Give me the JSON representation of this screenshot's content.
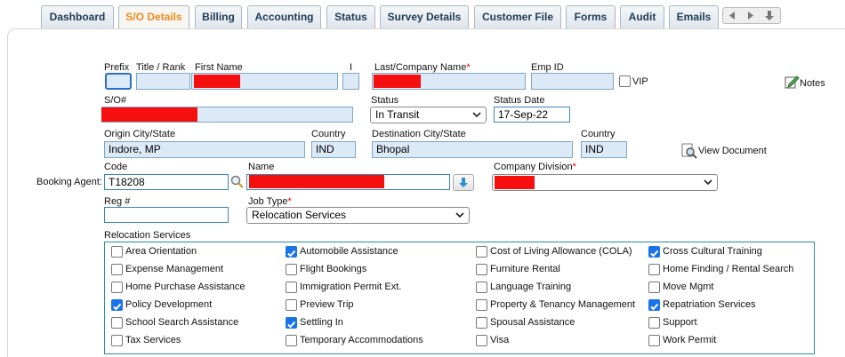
{
  "tabs": [
    {
      "label": "Dashboard"
    },
    {
      "label": "S/O Details",
      "active": true
    },
    {
      "label": "Billing"
    },
    {
      "label": "Accounting"
    },
    {
      "label": "Status"
    },
    {
      "label": "Survey Details"
    },
    {
      "label": "Customer File"
    },
    {
      "label": "Forms"
    },
    {
      "label": "Audit"
    },
    {
      "label": "Emails"
    }
  ],
  "form": {
    "prefix": {
      "label": "Prefix"
    },
    "title_rank": {
      "label": "Title / Rank"
    },
    "first_name": {
      "label": "First Name"
    },
    "initial": {
      "label": "I"
    },
    "last_name": {
      "label": "Last/Company Name",
      "required": "*"
    },
    "emp_id": {
      "label": "Emp ID"
    },
    "vip": {
      "label": "VIP",
      "checked": false
    },
    "notes": "Notes",
    "so_number": {
      "label": "S/O#"
    },
    "status": {
      "label": "Status",
      "value": "In Transit"
    },
    "status_date": {
      "label": "Status Date",
      "value": "17-Sep-22"
    },
    "origin": {
      "label": "Origin City/State",
      "value": "Indore, MP"
    },
    "origin_country": {
      "label": "Country",
      "value": "IND"
    },
    "destination": {
      "label": "Destination City/State",
      "value": "Bhopal"
    },
    "destination_country": {
      "label": "Country",
      "value": "IND"
    },
    "view_document": "View Document",
    "booking_agent": "Booking Agent:",
    "code": {
      "label": "Code",
      "value": "T18208"
    },
    "name": {
      "label": "Name"
    },
    "company_division": {
      "label": "Company Division",
      "required": "*"
    },
    "reg_number": {
      "label": "Reg #"
    },
    "job_type": {
      "label": "Job Type",
      "required": "*",
      "value": "Relocation Services"
    }
  },
  "relocation_services": {
    "label": "Relocation Services",
    "columns": [
      [
        {
          "label": "Area Orientation",
          "checked": false
        },
        {
          "label": "Expense Management",
          "checked": false
        },
        {
          "label": "Home Purchase Assistance",
          "checked": false
        },
        {
          "label": "Policy Development",
          "checked": true
        },
        {
          "label": "School Search Assistance",
          "checked": false
        },
        {
          "label": "Tax Services",
          "checked": false
        }
      ],
      [
        {
          "label": "Automobile Assistance",
          "checked": true
        },
        {
          "label": "Flight Bookings",
          "checked": false
        },
        {
          "label": "Immigration Permit Ext.",
          "checked": false
        },
        {
          "label": "Preview Trip",
          "checked": false
        },
        {
          "label": "Settling In",
          "checked": true
        },
        {
          "label": "Temporary Accommodations",
          "checked": false
        }
      ],
      [
        {
          "label": "Cost of Living Allowance (COLA)",
          "checked": false
        },
        {
          "label": "Furniture Rental",
          "checked": false
        },
        {
          "label": "Language Training",
          "checked": false
        },
        {
          "label": "Property & Tenancy Management",
          "checked": false
        },
        {
          "label": "Spousal Assistance",
          "checked": false
        },
        {
          "label": "Visa",
          "checked": false
        }
      ],
      [
        {
          "label": "Cross Cultural Training",
          "checked": true
        },
        {
          "label": "Home Finding / Rental Search",
          "checked": false
        },
        {
          "label": "Move Mgmt",
          "checked": false
        },
        {
          "label": "Repatriation Services",
          "checked": true
        },
        {
          "label": "Support",
          "checked": false
        },
        {
          "label": "Work Permit",
          "checked": false
        }
      ]
    ]
  }
}
